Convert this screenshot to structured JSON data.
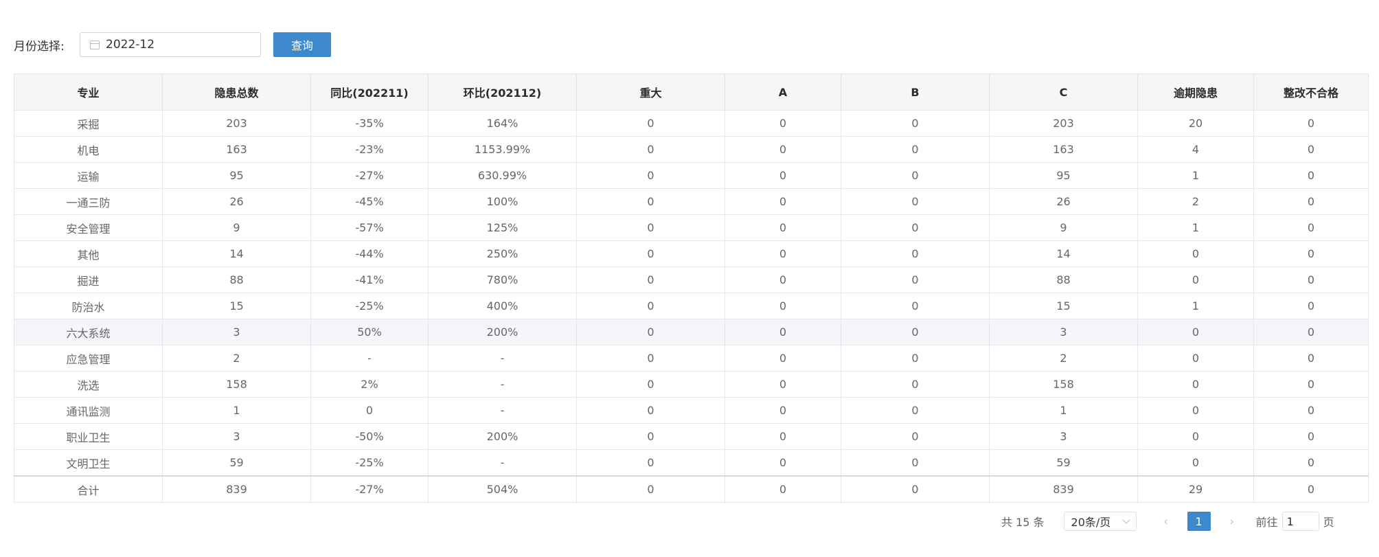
{
  "filter": {
    "label": "月份选择:",
    "month_value": "2022-12",
    "query_label": "查询"
  },
  "table": {
    "headers": [
      "专业",
      "隐患总数",
      "同比(202211)",
      "环比(202112)",
      "重大",
      "A",
      "B",
      "C",
      "逾期隐患",
      "整改不合格"
    ],
    "rows": [
      [
        "采掘",
        "203",
        "-35%",
        "164%",
        "0",
        "0",
        "0",
        "203",
        "20",
        "0"
      ],
      [
        "机电",
        "163",
        "-23%",
        "1153.99%",
        "0",
        "0",
        "0",
        "163",
        "4",
        "0"
      ],
      [
        "运输",
        "95",
        "-27%",
        "630.99%",
        "0",
        "0",
        "0",
        "95",
        "1",
        "0"
      ],
      [
        "一通三防",
        "26",
        "-45%",
        "100%",
        "0",
        "0",
        "0",
        "26",
        "2",
        "0"
      ],
      [
        "安全管理",
        "9",
        "-57%",
        "125%",
        "0",
        "0",
        "0",
        "9",
        "1",
        "0"
      ],
      [
        "其他",
        "14",
        "-44%",
        "250%",
        "0",
        "0",
        "0",
        "14",
        "0",
        "0"
      ],
      [
        "掘进",
        "88",
        "-41%",
        "780%",
        "0",
        "0",
        "0",
        "88",
        "0",
        "0"
      ],
      [
        "防治水",
        "15",
        "-25%",
        "400%",
        "0",
        "0",
        "0",
        "15",
        "1",
        "0"
      ],
      [
        "六大系统",
        "3",
        "50%",
        "200%",
        "0",
        "0",
        "0",
        "3",
        "0",
        "0"
      ],
      [
        "应急管理",
        "2",
        "-",
        "-",
        "0",
        "0",
        "0",
        "2",
        "0",
        "0"
      ],
      [
        "洗选",
        "158",
        "2%",
        "-",
        "0",
        "0",
        "0",
        "158",
        "0",
        "0"
      ],
      [
        "通讯监测",
        "1",
        "0",
        "-",
        "0",
        "0",
        "0",
        "1",
        "0",
        "0"
      ],
      [
        "职业卫生",
        "3",
        "-50%",
        "200%",
        "0",
        "0",
        "0",
        "3",
        "0",
        "0"
      ],
      [
        "文明卫生",
        "59",
        "-25%",
        "-",
        "0",
        "0",
        "0",
        "59",
        "0",
        "0"
      ],
      [
        "合计",
        "839",
        "-27%",
        "504%",
        "0",
        "0",
        "0",
        "839",
        "29",
        "0"
      ]
    ]
  },
  "pagination": {
    "total_text": "共 15 条",
    "page_size": "20条/页",
    "prev_icon": "‹",
    "next_icon": "›",
    "current_page": "1",
    "goto_label": "前往",
    "goto_value": "1",
    "page_unit": "页"
  },
  "colors": {
    "accent": "#3d89cc",
    "header_bg": "#f5f6f8",
    "highlight_row_bg": "#f4f6fa"
  },
  "icons": [
    "calendar-icon",
    "chevron-down-icon",
    "chevron-left-icon",
    "chevron-right-icon"
  ]
}
